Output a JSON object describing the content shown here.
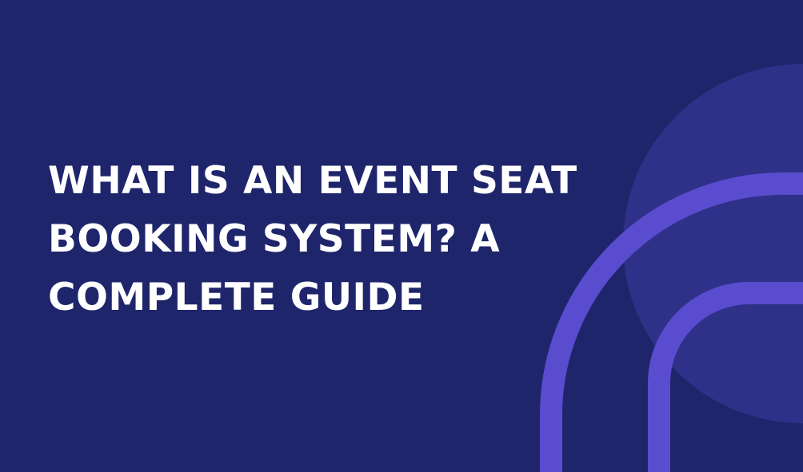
{
  "headline": {
    "line1": "WHAT IS AN EVENT SEAT",
    "line2": "BOOKING SYSTEM? A",
    "line3": "COMPLETE GUIDE"
  },
  "colors": {
    "background": "#1f256b",
    "circle": "#2f3189",
    "arc": "#5a4ccf",
    "text": "#ffffff"
  },
  "decorations": {
    "circle_icon": "large-circle-shape",
    "arc_icon": "concentric-arc-shape"
  }
}
